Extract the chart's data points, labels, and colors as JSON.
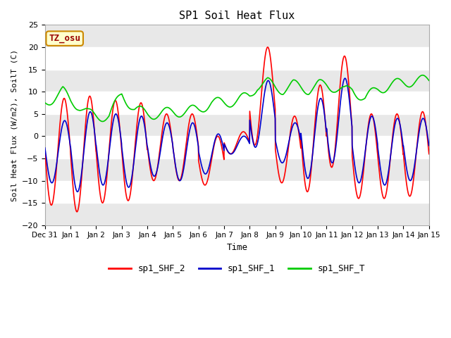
{
  "title": "SP1 Soil Heat Flux",
  "xlabel": "Time",
  "ylabel": "Soil Heat Flux (W/m2), SoilT (C)",
  "xlim": [
    0,
    15
  ],
  "ylim": [
    -20,
    25
  ],
  "yticks": [
    -20,
    -15,
    -10,
    -5,
    0,
    5,
    10,
    15,
    20,
    25
  ],
  "xtick_labels": [
    "Dec 31",
    "Jan 1",
    "Jan 2",
    "Jan 3",
    "Jan 4",
    "Jan 5",
    "Jan 6",
    "Jan 7",
    "Jan 8",
    "Jan 9",
    "Jan 10",
    "Jan 11",
    "Jan 12",
    "Jan 13",
    "Jan 14",
    "Jan 15"
  ],
  "xtick_positions": [
    0,
    1,
    2,
    3,
    4,
    5,
    6,
    7,
    8,
    9,
    10,
    11,
    12,
    13,
    14,
    15
  ],
  "line_colors": {
    "sp1_SHF_2": "#ff0000",
    "sp1_SHF_1": "#0000cc",
    "sp1_SHF_T": "#00cc00"
  },
  "line_widths": {
    "sp1_SHF_2": 1.2,
    "sp1_SHF_1": 1.2,
    "sp1_SHF_T": 1.2
  },
  "fig_bg": "#ffffff",
  "plot_bg_light": "#ffffff",
  "plot_bg_dark": "#e8e8e8",
  "annotation_text": "TZ_osu",
  "annotation_bg": "#ffffcc",
  "annotation_border": "#cc8800",
  "annotation_text_color": "#990000",
  "legend_entries": [
    "sp1_SHF_2",
    "sp1_SHF_1",
    "sp1_SHF_T"
  ],
  "band_edges": [
    -20,
    -15,
    -10,
    -5,
    0,
    5,
    10,
    15,
    20,
    25
  ],
  "band_colors": [
    "#e8e8e8",
    "#ffffff",
    "#e8e8e8",
    "#ffffff",
    "#e8e8e8",
    "#ffffff",
    "#e8e8e8",
    "#ffffff",
    "#e8e8e8"
  ]
}
